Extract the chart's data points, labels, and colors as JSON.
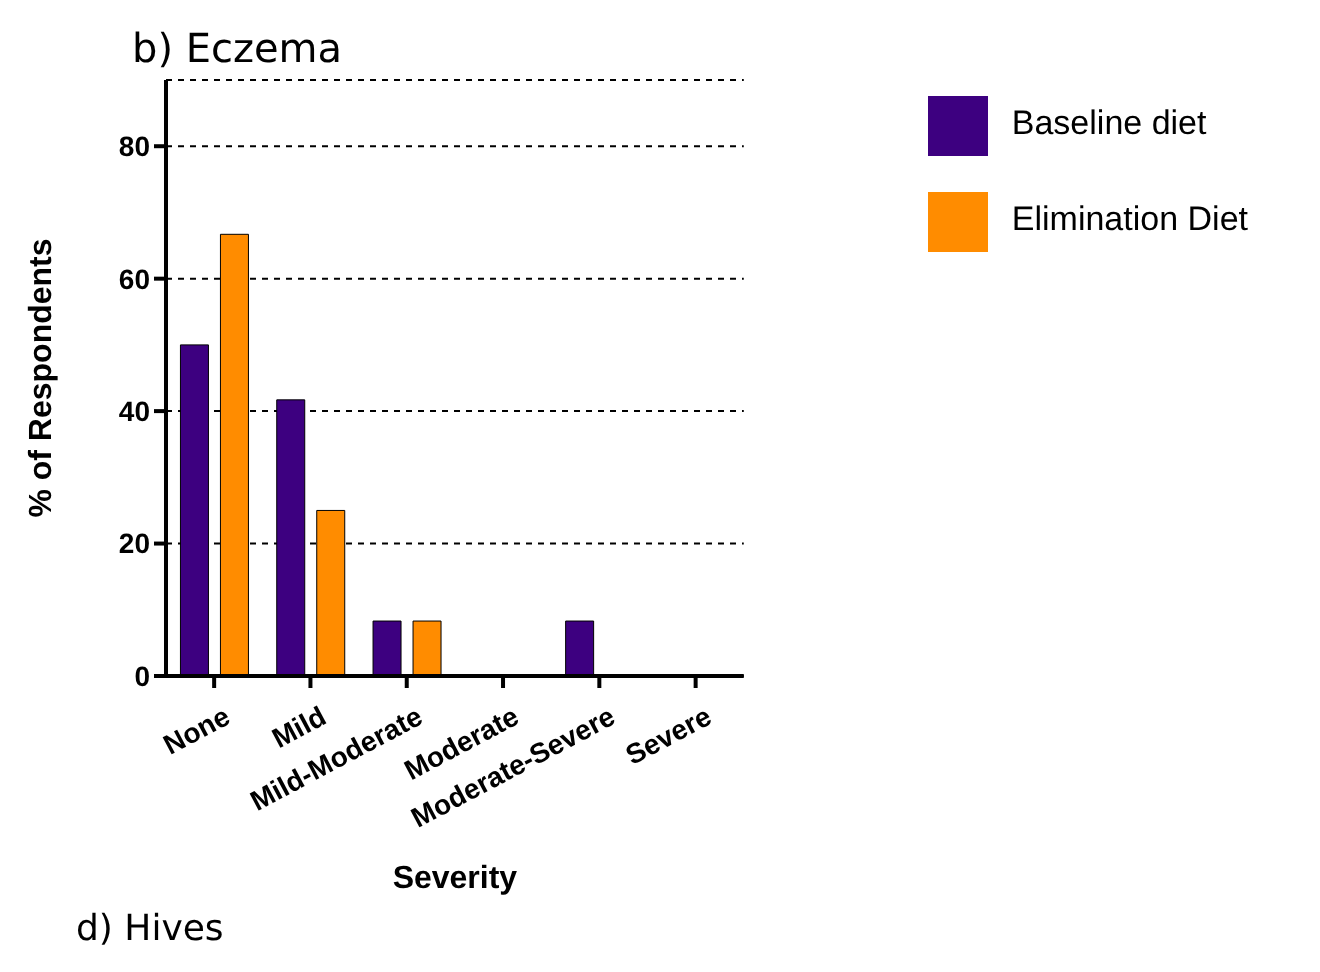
{
  "chart_data": {
    "type": "bar",
    "title": "b) Eczema",
    "xlabel": "Severity",
    "ylabel": "% of Respondents",
    "categories": [
      "None",
      "Mild",
      "Mild-Moderate",
      "Moderate",
      "Moderate-Severe",
      "Severe"
    ],
    "series": [
      {
        "name": "Baseline diet",
        "color": "#3d0080",
        "values": [
          50,
          41.7,
          8.3,
          0,
          8.3,
          0
        ]
      },
      {
        "name": "Elimination Diet",
        "color": "#ff8c00",
        "values": [
          66.7,
          25,
          8.3,
          0,
          0,
          0
        ]
      }
    ],
    "ylim": [
      0,
      90
    ],
    "yticks": [
      0,
      20,
      40,
      60,
      80
    ],
    "grid": "y",
    "line_style": "dotted",
    "legend": "top right",
    "annotations": [
      "d) Hives"
    ]
  }
}
